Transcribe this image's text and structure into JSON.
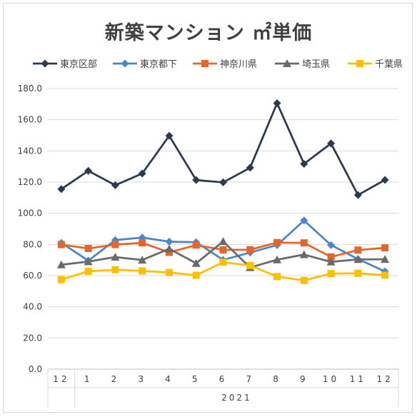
{
  "chart_data": {
    "type": "line",
    "title": "新築マンション ㎡単価",
    "categories": [
      "12",
      "1",
      "2",
      "3",
      "4",
      "5",
      "6",
      "7",
      "8",
      "9",
      "10",
      "11",
      "12"
    ],
    "year_group": {
      "label": "2021",
      "from_index": 1,
      "to_index": 12
    },
    "ylim": [
      0,
      180
    ],
    "yticks": [
      "0.0",
      "20.0",
      "40.0",
      "60.0",
      "80.0",
      "100.0",
      "120.0",
      "140.0",
      "160.0",
      "180.0"
    ],
    "grid": true,
    "legend_position": "top",
    "series": [
      {
        "name": "東京区部",
        "color": "#2c3a4f",
        "marker": "diamond",
        "values": [
          115.5,
          127.2,
          118.0,
          125.5,
          149.7,
          121.3,
          119.8,
          129.2,
          170.6,
          131.7,
          144.8,
          111.7,
          121.4
        ]
      },
      {
        "name": "東京都下",
        "color": "#4a86c8",
        "marker": "diamond",
        "values": [
          81.0,
          69.6,
          82.8,
          84.4,
          81.8,
          81.4,
          70.1,
          74.8,
          79.6,
          95.4,
          79.6,
          70.6,
          62.7
        ]
      },
      {
        "name": "神奈川県",
        "color": "#e4662a",
        "marker": "square",
        "values": [
          79.9,
          77.4,
          79.9,
          81.0,
          74.9,
          79.6,
          76.5,
          76.6,
          81.2,
          81.0,
          72.0,
          76.4,
          77.8
        ]
      },
      {
        "name": "埼玉県",
        "color": "#6a6a6a",
        "marker": "triangle",
        "values": [
          67.0,
          69.0,
          71.9,
          70.0,
          77.2,
          67.9,
          81.9,
          65.2,
          70.2,
          73.5,
          68.8,
          70.4,
          70.5
        ]
      },
      {
        "name": "千葉県",
        "color": "#ffbf00",
        "marker": "square",
        "values": [
          57.4,
          62.8,
          63.8,
          63.0,
          62.0,
          60.2,
          68.6,
          66.5,
          59.4,
          56.9,
          61.3,
          61.5,
          60.3
        ]
      }
    ]
  }
}
